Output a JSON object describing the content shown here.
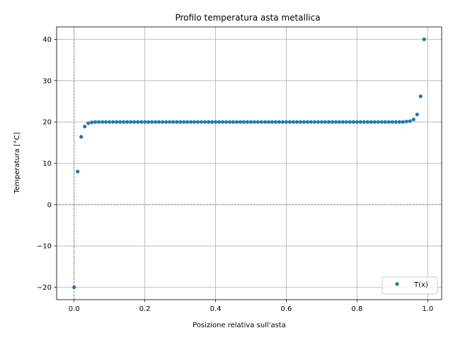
{
  "chart_data": {
    "type": "scatter",
    "title": "Profilo temperatura asta metallica",
    "xlabel": "Posizione relativa sull'asta",
    "ylabel": "Temperatura [°C]",
    "xlim": [
      -0.0495,
      1.0395
    ],
    "ylim": [
      -23.0,
      43.0
    ],
    "xticks": [
      0.0,
      0.2,
      0.4,
      0.6,
      0.8,
      1.0
    ],
    "xtick_labels": [
      "0.0",
      "0.2",
      "0.4",
      "0.6",
      "0.8",
      "1.0"
    ],
    "yticks": [
      -20,
      -10,
      0,
      10,
      20,
      30,
      40
    ],
    "ytick_labels": [
      "−20",
      "−10",
      "0",
      "10",
      "20",
      "30",
      "40"
    ],
    "grid": true,
    "reference_lines": {
      "x": 0,
      "y": 0,
      "style": "dotted",
      "color": "#808080"
    },
    "legend_position": "lower right",
    "marker_color": "#1f77b4",
    "series": [
      {
        "name": "T(x)",
        "x": [
          0.0,
          0.01,
          0.02,
          0.03,
          0.04,
          0.05,
          0.06,
          0.07,
          0.08,
          0.09,
          0.1,
          0.11,
          0.12,
          0.13,
          0.14,
          0.15,
          0.16,
          0.17,
          0.18,
          0.19,
          0.2,
          0.21,
          0.22,
          0.23,
          0.24,
          0.25,
          0.26,
          0.27,
          0.28,
          0.29,
          0.3,
          0.31,
          0.32,
          0.33,
          0.34,
          0.35,
          0.36,
          0.37,
          0.38,
          0.39,
          0.4,
          0.41,
          0.42,
          0.43,
          0.44,
          0.45,
          0.46,
          0.47,
          0.48,
          0.49,
          0.5,
          0.51,
          0.52,
          0.53,
          0.54,
          0.55,
          0.56,
          0.57,
          0.58,
          0.59,
          0.6,
          0.61,
          0.62,
          0.63,
          0.64,
          0.65,
          0.66,
          0.67,
          0.68,
          0.69,
          0.7,
          0.71,
          0.72,
          0.73,
          0.74,
          0.75,
          0.76,
          0.77,
          0.78,
          0.79,
          0.8,
          0.81,
          0.82,
          0.83,
          0.84,
          0.85,
          0.86,
          0.87,
          0.88,
          0.89,
          0.9,
          0.91,
          0.92,
          0.93,
          0.94,
          0.95,
          0.96,
          0.97,
          0.98,
          0.99
        ],
        "y": [
          -20.0,
          8.0,
          16.4,
          18.9,
          19.7,
          19.9,
          20.0,
          20.0,
          20.0,
          20.0,
          20.0,
          20.0,
          20.0,
          20.0,
          20.0,
          20.0,
          20.0,
          20.0,
          20.0,
          20.0,
          20.0,
          20.0,
          20.0,
          20.0,
          20.0,
          20.0,
          20.0,
          20.0,
          20.0,
          20.0,
          20.0,
          20.0,
          20.0,
          20.0,
          20.0,
          20.0,
          20.0,
          20.0,
          20.0,
          20.0,
          20.0,
          20.0,
          20.0,
          20.0,
          20.0,
          20.0,
          20.0,
          20.0,
          20.0,
          20.0,
          20.0,
          20.0,
          20.0,
          20.0,
          20.0,
          20.0,
          20.0,
          20.0,
          20.0,
          20.0,
          20.0,
          20.0,
          20.0,
          20.0,
          20.0,
          20.0,
          20.0,
          20.0,
          20.0,
          20.0,
          20.0,
          20.0,
          20.0,
          20.0,
          20.0,
          20.0,
          20.0,
          20.0,
          20.0,
          20.0,
          20.0,
          20.0,
          20.0,
          20.0,
          20.0,
          20.0,
          20.0,
          20.0,
          20.0,
          20.0,
          20.0,
          20.0,
          20.0,
          20.0,
          20.1,
          20.2,
          20.6,
          21.8,
          26.2,
          40.0
        ]
      }
    ]
  }
}
